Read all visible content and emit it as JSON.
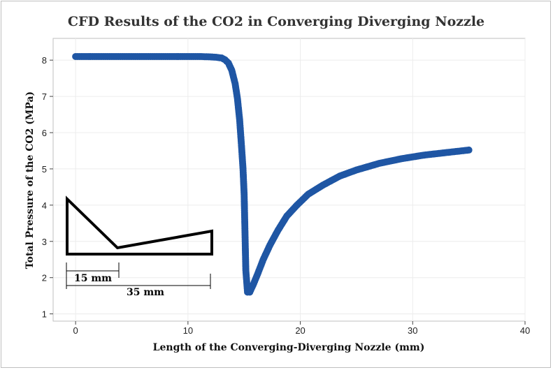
{
  "chart_data": {
    "type": "scatter",
    "title": "CFD Results of the CO2 in Converging Diverging Nozzle",
    "xlabel": "Length of the Converging-Diverging Nozzle (mm)",
    "ylabel": "Total Pressure of the CO2 (MPa)",
    "xlim": [
      -2,
      40
    ],
    "ylim": [
      0.8,
      8.6
    ],
    "xticks": [
      0,
      10,
      20,
      30,
      40
    ],
    "yticks": [
      1,
      2,
      3,
      4,
      5,
      6,
      7,
      8
    ],
    "grid": true,
    "marker_color": "#1f56a4",
    "series": [
      {
        "x": [
          0,
          2,
          4,
          6,
          8,
          10,
          11,
          12,
          12.5,
          13,
          13.3,
          13.6,
          13.9,
          14.2,
          14.4,
          14.6,
          14.75,
          14.9,
          15.0,
          15.05,
          15.1,
          15.15,
          15.3,
          15.5,
          15.8,
          16.2,
          16.7,
          17.3,
          18.0,
          18.8,
          19.7,
          20.7,
          22,
          23.5,
          25,
          27,
          29,
          31,
          33,
          35
        ],
        "y": [
          8.1,
          8.1,
          8.1,
          8.1,
          8.1,
          8.1,
          8.1,
          8.09,
          8.08,
          8.06,
          8.01,
          7.92,
          7.72,
          7.35,
          6.95,
          6.35,
          5.7,
          5.0,
          4.3,
          3.6,
          2.9,
          2.2,
          1.6,
          1.6,
          1.8,
          2.1,
          2.5,
          2.9,
          3.3,
          3.7,
          4.0,
          4.3,
          4.55,
          4.8,
          4.97,
          5.15,
          5.28,
          5.38,
          5.45,
          5.52
        ]
      }
    ],
    "inset": {
      "dim_short": "15 mm",
      "dim_long": "35 mm"
    }
  }
}
